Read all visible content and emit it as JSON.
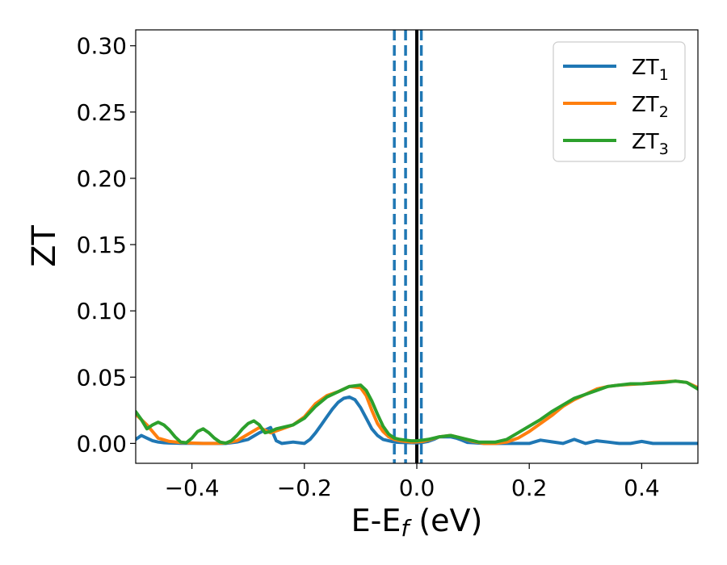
{
  "chart_data": {
    "type": "line",
    "title": "",
    "xlabel": "E-E",
    "xlabel_sub": "f",
    "xlabel_unit": " (eV)",
    "ylabel": "ZT",
    "xlim": [
      -0.5,
      0.5
    ],
    "ylim": [
      -0.015,
      0.312
    ],
    "xticks": [
      -0.4,
      -0.2,
      0.0,
      0.2,
      0.4
    ],
    "xtick_labels": [
      "−0.4",
      "−0.2",
      "0.0",
      "0.2",
      "0.4"
    ],
    "yticks": [
      0.0,
      0.05,
      0.1,
      0.15,
      0.2,
      0.25,
      0.3
    ],
    "ytick_labels": [
      "0.00",
      "0.05",
      "0.10",
      "0.15",
      "0.20",
      "0.25",
      "0.30"
    ],
    "grid": false,
    "legend_position": "top-right",
    "reference_lines": [
      {
        "x": -0.04,
        "style": "dashed",
        "color": "#1f77b4"
      },
      {
        "x": -0.02,
        "style": "dashed",
        "color": "#1f77b4"
      },
      {
        "x": 0.008,
        "style": "dashed",
        "color": "#1f77b4"
      },
      {
        "x": 0.0,
        "style": "solid",
        "color": "#000000"
      }
    ],
    "series": [
      {
        "name": "ZT",
        "name_sub": "1",
        "color": "#1f77b4",
        "x": [
          -0.5,
          -0.49,
          -0.48,
          -0.47,
          -0.46,
          -0.45,
          -0.44,
          -0.43,
          -0.42,
          -0.41,
          -0.4,
          -0.38,
          -0.36,
          -0.34,
          -0.32,
          -0.3,
          -0.28,
          -0.26,
          -0.25,
          -0.24,
          -0.22,
          -0.2,
          -0.19,
          -0.18,
          -0.17,
          -0.16,
          -0.15,
          -0.14,
          -0.13,
          -0.12,
          -0.11,
          -0.1,
          -0.09,
          -0.08,
          -0.07,
          -0.06,
          -0.05,
          -0.04,
          -0.03,
          -0.02,
          -0.01,
          0.0,
          0.01,
          0.02,
          0.03,
          0.04,
          0.05,
          0.06,
          0.07,
          0.08,
          0.09,
          0.1,
          0.12,
          0.14,
          0.16,
          0.18,
          0.2,
          0.22,
          0.24,
          0.26,
          0.28,
          0.3,
          0.32,
          0.34,
          0.36,
          0.38,
          0.4,
          0.42,
          0.44,
          0.46,
          0.48,
          0.5
        ],
        "y": [
          0.003,
          0.006,
          0.004,
          0.002,
          0.001,
          0.0005,
          0.0003,
          0.0002,
          0.0001,
          0.0001,
          0.0001,
          0.0,
          0.0,
          0.0,
          0.001,
          0.003,
          0.008,
          0.012,
          0.002,
          0.0,
          0.001,
          0.0,
          0.003,
          0.008,
          0.014,
          0.02,
          0.026,
          0.031,
          0.034,
          0.035,
          0.033,
          0.027,
          0.019,
          0.011,
          0.006,
          0.003,
          0.002,
          0.001,
          0.0008,
          0.0006,
          0.0005,
          0.0004,
          0.0008,
          0.0015,
          0.003,
          0.005,
          0.005,
          0.005,
          0.004,
          0.0025,
          0.0008,
          0.0005,
          0.0,
          0.0,
          0.0,
          0.0,
          0.0,
          0.0025,
          0.0012,
          0.0,
          0.003,
          0.0,
          0.002,
          0.001,
          0.0,
          0.0,
          0.0015,
          0.0,
          0.0,
          0.0,
          0.0,
          0.0
        ]
      },
      {
        "name": "ZT",
        "name_sub": "2",
        "color": "#ff7f0e",
        "x": [
          -0.5,
          -0.48,
          -0.46,
          -0.44,
          -0.42,
          -0.4,
          -0.38,
          -0.36,
          -0.34,
          -0.32,
          -0.3,
          -0.28,
          -0.26,
          -0.24,
          -0.22,
          -0.2,
          -0.18,
          -0.16,
          -0.14,
          -0.12,
          -0.1,
          -0.09,
          -0.08,
          -0.07,
          -0.06,
          -0.05,
          -0.04,
          -0.03,
          -0.02,
          -0.01,
          0.0,
          0.01,
          0.02,
          0.04,
          0.06,
          0.08,
          0.1,
          0.12,
          0.14,
          0.16,
          0.18,
          0.2,
          0.22,
          0.24,
          0.26,
          0.28,
          0.3,
          0.32,
          0.34,
          0.36,
          0.38,
          0.4,
          0.42,
          0.44,
          0.46,
          0.48,
          0.5
        ],
        "y": [
          0.022,
          0.014,
          0.004,
          0.0015,
          0.0007,
          0.0003,
          0.0,
          0.0,
          0.0003,
          0.002,
          0.007,
          0.012,
          0.008,
          0.011,
          0.014,
          0.02,
          0.03,
          0.036,
          0.039,
          0.043,
          0.042,
          0.036,
          0.025,
          0.015,
          0.009,
          0.005,
          0.003,
          0.002,
          0.0015,
          0.001,
          0.0012,
          0.0015,
          0.0025,
          0.005,
          0.006,
          0.004,
          0.0015,
          0.0,
          0.0,
          0.001,
          0.004,
          0.009,
          0.015,
          0.021,
          0.028,
          0.033,
          0.037,
          0.041,
          0.043,
          0.044,
          0.0445,
          0.045,
          0.046,
          0.0465,
          0.047,
          0.046,
          0.042
        ]
      },
      {
        "name": "ZT",
        "name_sub": "3",
        "color": "#2ca02c",
        "x": [
          -0.5,
          -0.49,
          -0.48,
          -0.47,
          -0.46,
          -0.45,
          -0.44,
          -0.43,
          -0.42,
          -0.41,
          -0.4,
          -0.39,
          -0.38,
          -0.37,
          -0.36,
          -0.35,
          -0.34,
          -0.33,
          -0.32,
          -0.31,
          -0.3,
          -0.29,
          -0.28,
          -0.27,
          -0.26,
          -0.25,
          -0.24,
          -0.22,
          -0.2,
          -0.18,
          -0.16,
          -0.14,
          -0.12,
          -0.1,
          -0.09,
          -0.08,
          -0.07,
          -0.06,
          -0.05,
          -0.04,
          -0.03,
          -0.02,
          -0.01,
          0.0,
          0.01,
          0.02,
          0.04,
          0.06,
          0.08,
          0.1,
          0.11,
          0.12,
          0.13,
          0.14,
          0.16,
          0.18,
          0.2,
          0.22,
          0.24,
          0.26,
          0.28,
          0.3,
          0.32,
          0.34,
          0.36,
          0.38,
          0.4,
          0.42,
          0.44,
          0.46,
          0.48,
          0.5
        ],
        "y": [
          0.024,
          0.018,
          0.011,
          0.014,
          0.016,
          0.014,
          0.01,
          0.005,
          0.001,
          0.0005,
          0.004,
          0.009,
          0.011,
          0.008,
          0.004,
          0.001,
          0.0002,
          0.002,
          0.006,
          0.011,
          0.015,
          0.017,
          0.014,
          0.008,
          0.009,
          0.011,
          0.012,
          0.014,
          0.019,
          0.028,
          0.035,
          0.039,
          0.043,
          0.044,
          0.04,
          0.032,
          0.022,
          0.013,
          0.007,
          0.004,
          0.003,
          0.0025,
          0.002,
          0.002,
          0.0025,
          0.003,
          0.005,
          0.006,
          0.004,
          0.002,
          0.001,
          0.001,
          0.001,
          0.001,
          0.003,
          0.008,
          0.013,
          0.018,
          0.024,
          0.029,
          0.034,
          0.037,
          0.04,
          0.043,
          0.044,
          0.045,
          0.045,
          0.0455,
          0.046,
          0.047,
          0.046,
          0.041
        ]
      }
    ]
  }
}
